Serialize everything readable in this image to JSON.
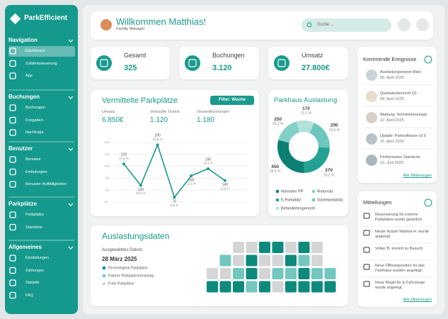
{
  "sidebar": {
    "logo": "ParkEfficient",
    "sections": [
      {
        "title": "Navigation",
        "items": [
          "Dashboard",
          "Zufahrtssteuerung",
          "App"
        ]
      },
      {
        "title": "Buchungen",
        "items": [
          "Buchungen",
          "Freigaben",
          "Nachfrage"
        ]
      },
      {
        "title": "Benutzer",
        "items": [
          "Benutzer",
          "Einladungen",
          "Benutzer-Auffälligkeiten"
        ]
      },
      {
        "title": "Parkplätze",
        "items": [
          "Parkplätze",
          "Standorte"
        ]
      },
      {
        "title": "Allgemeines",
        "items": [
          "Einstellungen",
          "Zahlungen",
          "Statistik",
          "FAQ"
        ]
      }
    ]
  },
  "header": {
    "greeting": "Willkommen Matthias!",
    "role": "Facility Manager",
    "search_placeholder": "Suche ..."
  },
  "kpis": [
    {
      "label": "Gesamt",
      "value": "325"
    },
    {
      "label": "Buchungen",
      "value": "3.120"
    },
    {
      "label": "Umsatz",
      "value": "27.800€"
    }
  ],
  "placements": {
    "title": "Vermittelte Parkplätze",
    "filter": "Filter: Woche",
    "stats": [
      {
        "label": "Umsatz",
        "value": "6.850€"
      },
      {
        "label": "Verkaufte Tickets",
        "value": "1.120"
      },
      {
        "label": "Gesamtbuchungen",
        "value": "1.180"
      }
    ],
    "chart": {
      "type": "line",
      "values": [
        210,
        120,
        290,
        70,
        160,
        190,
        140
      ],
      "percent_labels": [
        "17,8 %",
        "10,2 %",
        "24,6 %",
        "5,9 %",
        "13,6 %",
        "16,1 %",
        "11,9 %"
      ],
      "color": "#1a9a8c",
      "ylim": [
        50,
        300
      ],
      "yticks": [
        50,
        100,
        150,
        200,
        250,
        300
      ],
      "grid": true
    }
  },
  "occupancy": {
    "title": "Parkhaus Auslastung",
    "chart": {
      "type": "donut",
      "categories": [
        "Behindertengerecht",
        "Gästeparkplatz",
        "E-Parkplatz",
        "Normaler PP",
        "Motorrad"
      ],
      "values": [
        170,
        290,
        370,
        450,
        250
      ],
      "percent_labels": [
        "11,1 %",
        "19,0 %",
        "24,2 %",
        "29,4 %",
        "16,3 %"
      ],
      "colors": [
        "#b2e0da",
        "#6cc7bd",
        "#25a193",
        "#0b8174",
        "#82d0c6"
      ]
    }
  },
  "events": {
    "title": "Kommende Ereignisse",
    "items": [
      {
        "title": "Auslastungsreport März",
        "date": "09. April 2025"
      },
      {
        "title": "Quartalsubersicht Q1",
        "date": "08. April 2025"
      },
      {
        "title": "Wartung: Schrankenanlage",
        "date": "22. April 2025"
      },
      {
        "title": "Update: Parksoftware v2.5",
        "date": "25. April 2025"
      },
      {
        "title": "Performance Standorte",
        "date": "10. Juni 2025"
      }
    ],
    "link": "Alle Mitteilungen"
  },
  "notifications": {
    "title": "Mitteilungen",
    "items": [
      "Reservierung für externe Parkplätze wurde geändert.",
      "Neuer Nutzer Martina H. wurde angelegt.",
      "Volker B. kommt zu Besuch.",
      "Neue Öffnungszeiten für das Parkhaus wurden angelegt.",
      "Neue Regel für E-Fahrzeuge wurde angelegt."
    ],
    "link": "Alle Mitteilungen"
  },
  "heatmap": {
    "title": "Auslastungsdaten",
    "date_label": "Ausgewähltes Datum:",
    "date": "28 März 2025",
    "legend": [
      {
        "name": "Firmeneigene Parkplätze",
        "color": "#0e8a7d"
      },
      {
        "name": "Externe Parkplatzvermietung",
        "color": "#72c8be"
      },
      {
        "name": "Freie Parkplätze",
        "color": "#d4d6d6"
      }
    ],
    "rows": [
      [
        2,
        2,
        0,
        0,
        2,
        0,
        2
      ],
      [
        1,
        2,
        0,
        2,
        2,
        0,
        1,
        2
      ],
      [
        2,
        2,
        1,
        0,
        2,
        1,
        1,
        0,
        1,
        1
      ],
      [
        0,
        0,
        0,
        1,
        0,
        2,
        0,
        0,
        0,
        0
      ]
    ]
  }
}
